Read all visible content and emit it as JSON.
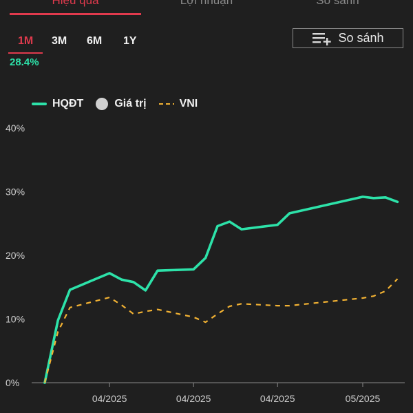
{
  "tabs": [
    {
      "label": "Hiệu quả",
      "active": true
    },
    {
      "label": "Lợi nhuận",
      "active": false
    },
    {
      "label": "So sánh",
      "active": false
    }
  ],
  "ranges": [
    {
      "label": "1M",
      "active": true
    },
    {
      "label": "3M",
      "active": false
    },
    {
      "label": "6M",
      "active": false
    },
    {
      "label": "1Y",
      "active": false
    }
  ],
  "range_return": "28.4%",
  "compare_button": {
    "label": "So sánh",
    "icon": "playlist-add-icon"
  },
  "legend": [
    {
      "label": "HQĐT",
      "style": "solid-line",
      "color": "#2de2a9"
    },
    {
      "label": "Giá trị",
      "style": "dot",
      "color": "#d0d0d0"
    },
    {
      "label": "VNI",
      "style": "dashed-line",
      "color": "#f2b233"
    }
  ],
  "colors": {
    "accent": "#e03a4d",
    "positive": "#2de2a9",
    "vni": "#f2b233",
    "background": "#1f1f1f"
  },
  "chart_data": {
    "type": "line",
    "ylim": [
      0,
      40
    ],
    "yticks": [
      "0%",
      "10%",
      "20%",
      "30%",
      "40%"
    ],
    "xlim": [
      0,
      30
    ],
    "xticks": [
      {
        "x": 5.4,
        "label": "04/2025"
      },
      {
        "x": 12.4,
        "label": "04/2025"
      },
      {
        "x": 19.4,
        "label": "04/2025"
      },
      {
        "x": 26.5,
        "label": "05/2025"
      }
    ],
    "series": [
      {
        "name": "HQĐT",
        "color": "#2de2a9",
        "style": "solid",
        "x": [
          0,
          1.1,
          2.1,
          5.4,
          6.4,
          7.4,
          8.4,
          9.4,
          12.4,
          13.4,
          14.4,
          15.4,
          16.4,
          19.4,
          20.4,
          26.5,
          27.4,
          28.4,
          29.4
        ],
        "values": [
          0,
          9.8,
          14.6,
          17.2,
          16.2,
          15.8,
          14.5,
          17.6,
          17.8,
          19.6,
          24.6,
          25.3,
          24.1,
          24.8,
          26.6,
          29.2,
          29.0,
          29.1,
          28.4
        ]
      },
      {
        "name": "VNI",
        "color": "#f2b233",
        "style": "dashed",
        "x": [
          0,
          1.1,
          2.1,
          5.4,
          6.4,
          7.4,
          8.4,
          9.4,
          12.4,
          13.4,
          14.4,
          15.4,
          16.4,
          19.4,
          20.4,
          26.5,
          27.4,
          28.4,
          29.4
        ],
        "values": [
          0,
          8.0,
          11.8,
          13.4,
          12.2,
          10.8,
          11.2,
          11.5,
          10.3,
          9.5,
          10.8,
          12.0,
          12.4,
          12.1,
          12.1,
          13.3,
          13.6,
          14.4,
          16.3
        ]
      }
    ]
  }
}
